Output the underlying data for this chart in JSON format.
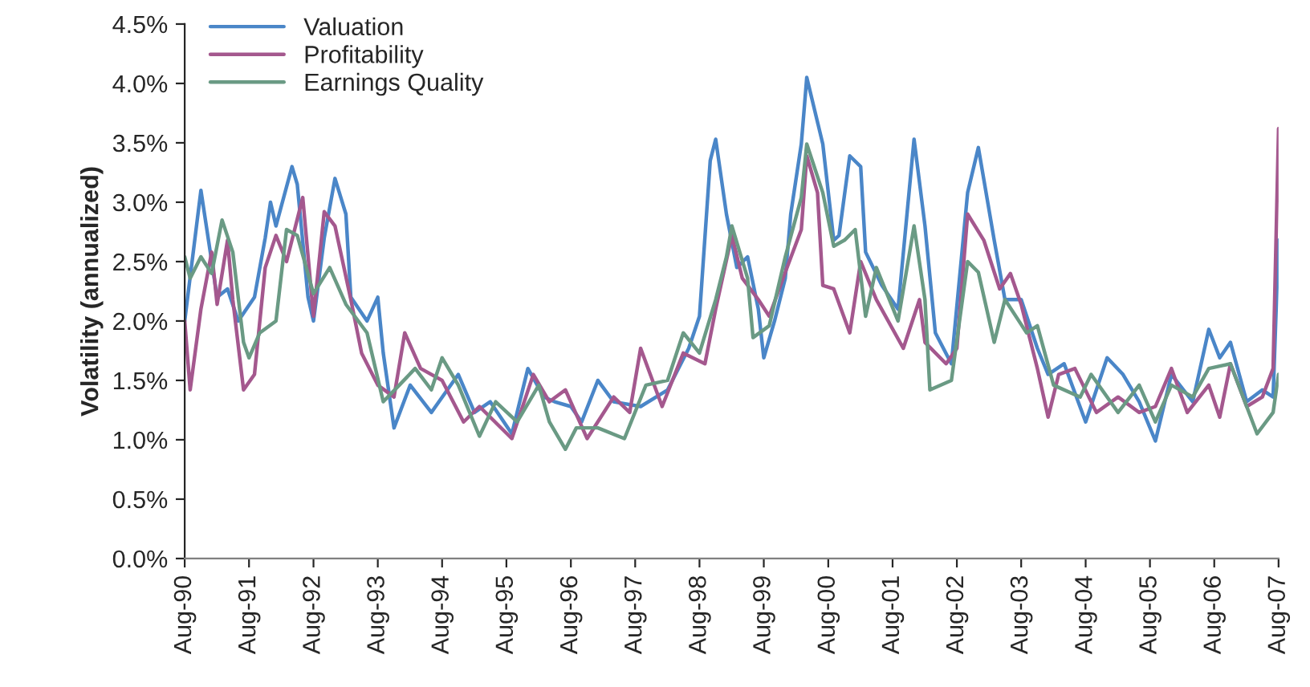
{
  "chart_data": {
    "type": "line",
    "ylabel": "Volatility (annualized)",
    "xlim": [
      "1990-08",
      "2007-08"
    ],
    "xticks": [
      {
        "value": "1990-08",
        "label": "Aug-90"
      },
      {
        "value": "1991-08",
        "label": "Aug-91"
      },
      {
        "value": "1992-08",
        "label": "Aug-92"
      },
      {
        "value": "1993-08",
        "label": "Aug-93"
      },
      {
        "value": "1994-08",
        "label": "Aug-94"
      },
      {
        "value": "1995-08",
        "label": "Aug-95"
      },
      {
        "value": "1996-08",
        "label": "Aug-96"
      },
      {
        "value": "1997-08",
        "label": "Aug-97"
      },
      {
        "value": "1998-08",
        "label": "Aug-98"
      },
      {
        "value": "1999-08",
        "label": "Aug-99"
      },
      {
        "value": "2000-08",
        "label": "Aug-00"
      },
      {
        "value": "2001-08",
        "label": "Aug-01"
      },
      {
        "value": "2002-08",
        "label": "Aug-02"
      },
      {
        "value": "2003-08",
        "label": "Aug-03"
      },
      {
        "value": "2004-08",
        "label": "Aug-04"
      },
      {
        "value": "2005-08",
        "label": "Aug-05"
      },
      {
        "value": "2006-08",
        "label": "Aug-06"
      },
      {
        "value": "2007-08",
        "label": "Aug-07"
      }
    ],
    "ylim": [
      0,
      4.5
    ],
    "yticks": [
      {
        "value": 0,
        "label": "0.0%"
      },
      {
        "value": 0.5,
        "label": "0.5%"
      },
      {
        "value": 1,
        "label": "1.0%"
      },
      {
        "value": 1.5,
        "label": "1.5%"
      },
      {
        "value": 2,
        "label": "2.0%"
      },
      {
        "value": 2.5,
        "label": "2.5%"
      },
      {
        "value": 3,
        "label": "3.0%"
      },
      {
        "value": 3.5,
        "label": "3.5%"
      },
      {
        "value": 4,
        "label": "4.0%"
      },
      {
        "value": 4.5,
        "label": "4.5%"
      }
    ],
    "grid": false,
    "legend": "top left",
    "marker": "none",
    "line_style": "solid",
    "series": [
      {
        "name": "Valuation",
        "color": "#4a86c8",
        "x": [
          "1990-08",
          "1990-11",
          "1991-02",
          "1991-04",
          "1991-06",
          "1991-09",
          "1991-11",
          "1991-12",
          "1992-01",
          "1992-04",
          "1992-05",
          "1992-07",
          "1992-08",
          "1992-10",
          "1992-12",
          "1993-02",
          "1993-03",
          "1993-06",
          "1993-08",
          "1993-09",
          "1993-11",
          "1994-02",
          "1994-06",
          "1994-11",
          "1995-02",
          "1995-05",
          "1995-09",
          "1995-12",
          "1996-03",
          "1996-05",
          "1996-08",
          "1996-10",
          "1997-01",
          "1997-04",
          "1997-09",
          "1998-02",
          "1998-06",
          "1998-08",
          "1998-10",
          "1998-11",
          "1999-01",
          "1999-03",
          "1999-05",
          "1999-07",
          "1999-08",
          "1999-10",
          "1999-12",
          "2000-01",
          "2000-03",
          "2000-04",
          "2000-07",
          "2000-09",
          "2000-10",
          "2000-12",
          "2001-02",
          "2001-03",
          "2001-06",
          "2001-09",
          "2001-12",
          "2002-02",
          "2002-04",
          "2002-07",
          "2002-10",
          "2002-12",
          "2003-03",
          "2003-05",
          "2003-08",
          "2003-11",
          "2004-01",
          "2004-04",
          "2004-08",
          "2004-12",
          "2005-03",
          "2005-06",
          "2005-09",
          "2005-12",
          "2006-04",
          "2006-07",
          "2006-09",
          "2006-11",
          "2007-02",
          "2007-05",
          "2007-07",
          "2007-08"
        ],
        "values": [
          2.0,
          3.1,
          2.2,
          2.27,
          2.0,
          2.2,
          2.7,
          3.0,
          2.8,
          3.3,
          3.15,
          2.2,
          2.0,
          2.7,
          3.2,
          2.9,
          2.2,
          2.0,
          2.2,
          1.73,
          1.1,
          1.46,
          1.23,
          1.55,
          1.23,
          1.32,
          1.05,
          1.6,
          1.36,
          1.32,
          1.28,
          1.15,
          1.5,
          1.32,
          1.28,
          1.42,
          1.77,
          2.04,
          3.35,
          3.53,
          2.9,
          2.45,
          2.54,
          2.1,
          1.69,
          2.0,
          2.36,
          2.9,
          3.49,
          4.05,
          3.49,
          2.68,
          2.72,
          3.39,
          3.3,
          2.58,
          2.3,
          2.1,
          3.53,
          2.8,
          1.9,
          1.64,
          3.08,
          3.46,
          2.68,
          2.18,
          2.18,
          1.77,
          1.55,
          1.64,
          1.15,
          1.69,
          1.55,
          1.32,
          0.99,
          1.55,
          1.32,
          1.93,
          1.69,
          1.82,
          1.32,
          1.42,
          1.36,
          2.68
        ]
      },
      {
        "name": "Profitability",
        "color": "#a4588e",
        "x": [
          "1990-08",
          "1990-09",
          "1990-11",
          "1991-01",
          "1991-02",
          "1991-04",
          "1991-05",
          "1991-07",
          "1991-09",
          "1991-11",
          "1992-01",
          "1992-03",
          "1992-06",
          "1992-08",
          "1992-10",
          "1992-12",
          "1993-03",
          "1993-05",
          "1993-08",
          "1993-11",
          "1994-01",
          "1994-04",
          "1994-08",
          "1994-12",
          "1995-03",
          "1995-09",
          "1996-01",
          "1996-04",
          "1996-07",
          "1996-11",
          "1997-04",
          "1997-07",
          "1997-09",
          "1998-01",
          "1998-05",
          "1998-09",
          "1998-11",
          "1999-02",
          "1999-04",
          "1999-07",
          "1999-09",
          "1999-12",
          "2000-03",
          "2000-04",
          "2000-06",
          "2000-07",
          "2000-09",
          "2000-12",
          "2001-02",
          "2001-05",
          "2001-10",
          "2002-01",
          "2002-02",
          "2002-06",
          "2002-08",
          "2002-10",
          "2003-01",
          "2003-04",
          "2003-06",
          "2003-08",
          "2003-11",
          "2004-01",
          "2004-03",
          "2004-06",
          "2004-10",
          "2005-02",
          "2005-06",
          "2005-09",
          "2005-12",
          "2006-03",
          "2006-07",
          "2006-09",
          "2006-11",
          "2007-02",
          "2007-05",
          "2007-07",
          "2007-08"
        ],
        "values": [
          2.0,
          1.42,
          2.1,
          2.58,
          2.14,
          2.68,
          2.18,
          1.42,
          1.55,
          2.45,
          2.72,
          2.5,
          3.04,
          2.04,
          2.92,
          2.8,
          2.18,
          1.73,
          1.46,
          1.36,
          1.9,
          1.6,
          1.5,
          1.15,
          1.28,
          1.01,
          1.55,
          1.32,
          1.42,
          1.01,
          1.36,
          1.23,
          1.77,
          1.28,
          1.73,
          1.64,
          2.1,
          2.72,
          2.36,
          2.18,
          2.04,
          2.41,
          2.77,
          3.39,
          3.08,
          2.3,
          2.27,
          1.9,
          2.5,
          2.18,
          1.77,
          2.18,
          1.82,
          1.64,
          1.77,
          2.9,
          2.68,
          2.27,
          2.4,
          2.14,
          1.6,
          1.19,
          1.55,
          1.6,
          1.23,
          1.36,
          1.23,
          1.28,
          1.6,
          1.23,
          1.46,
          1.19,
          1.64,
          1.28,
          1.36,
          1.6,
          3.62
        ]
      },
      {
        "name": "Earnings Quality",
        "color": "#6a9a84",
        "x": [
          "1990-08",
          "1990-09",
          "1990-11",
          "1991-01",
          "1991-03",
          "1991-05",
          "1991-07",
          "1991-08",
          "1991-10",
          "1992-01",
          "1992-03",
          "1992-05",
          "1992-08",
          "1992-11",
          "1993-02",
          "1993-06",
          "1993-09",
          "1993-12",
          "1994-03",
          "1994-06",
          "1994-08",
          "1994-11",
          "1995-03",
          "1995-06",
          "1995-10",
          "1996-02",
          "1996-04",
          "1996-07",
          "1996-09",
          "1997-01",
          "1997-06",
          "1997-10",
          "1998-02",
          "1998-05",
          "1998-08",
          "1998-11",
          "1999-01",
          "1999-02",
          "1999-05",
          "1999-06",
          "1999-09",
          "1999-12",
          "2000-03",
          "2000-04",
          "2000-07",
          "2000-09",
          "2000-11",
          "2001-01",
          "2001-03",
          "2001-05",
          "2001-09",
          "2001-12",
          "2002-02",
          "2002-03",
          "2002-07",
          "2002-10",
          "2002-12",
          "2003-03",
          "2003-05",
          "2003-09",
          "2003-11",
          "2004-02",
          "2004-07",
          "2004-09",
          "2005-02",
          "2005-06",
          "2005-09",
          "2005-12",
          "2006-04",
          "2006-07",
          "2006-11",
          "2007-04",
          "2007-07",
          "2007-08"
        ],
        "values": [
          2.54,
          2.36,
          2.54,
          2.4,
          2.85,
          2.58,
          1.82,
          1.69,
          1.9,
          2.0,
          2.77,
          2.72,
          2.23,
          2.45,
          2.14,
          1.9,
          1.32,
          1.46,
          1.6,
          1.42,
          1.69,
          1.46,
          1.03,
          1.32,
          1.15,
          1.46,
          1.15,
          0.92,
          1.1,
          1.1,
          1.01,
          1.46,
          1.5,
          1.9,
          1.73,
          2.18,
          2.54,
          2.8,
          2.36,
          1.86,
          1.96,
          2.54,
          3.04,
          3.49,
          3.08,
          2.63,
          2.68,
          2.77,
          2.04,
          2.45,
          2.0,
          2.8,
          2.18,
          1.42,
          1.5,
          2.5,
          2.41,
          1.82,
          2.18,
          1.9,
          1.96,
          1.46,
          1.36,
          1.55,
          1.23,
          1.46,
          1.15,
          1.46,
          1.36,
          1.6,
          1.64,
          1.05,
          1.23,
          1.55
        ]
      }
    ]
  }
}
